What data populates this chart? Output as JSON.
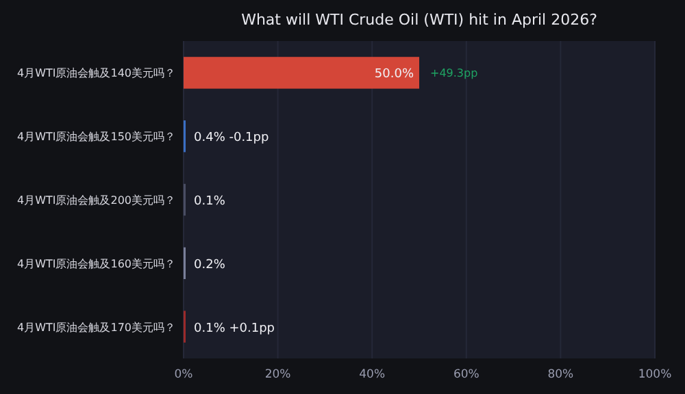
{
  "chart_data": {
    "type": "bar",
    "orientation": "horizontal",
    "title": "What will WTI Crude Oil (WTI) hit in April 2026?",
    "categories": [
      "4月WTI原油会触及140美元吗？",
      "4月WTI原油会触及150美元吗？",
      "4月WTI原油会触及200美元吗？",
      "4月WTI原油会触及160美元吗？",
      "4月WTI原油会触及170美元吗？"
    ],
    "values": [
      50.0,
      0.4,
      0.1,
      0.2,
      0.1
    ],
    "colors": [
      "#d44638",
      "#3a6fc4",
      "#4a4e63",
      "#7a7f99",
      "#9c2a2a"
    ],
    "value_labels": [
      "50.0%",
      "0.4% -0.1pp",
      "0.1%",
      "0.2%",
      "0.1% +0.1pp"
    ],
    "annotations": [
      {
        "text": "+49.3pp",
        "x": 50.0,
        "y": "4月WTI原油会触及140美元吗？"
      }
    ],
    "xlim": [
      0,
      100
    ],
    "xticks": [
      {
        "value": 0,
        "label": "0%"
      },
      {
        "value": 20,
        "label": "20%"
      },
      {
        "value": 40,
        "label": "40%"
      },
      {
        "value": 60,
        "label": "60%"
      },
      {
        "value": 80,
        "label": "80%"
      },
      {
        "value": 100,
        "label": "100%"
      }
    ],
    "grid": "x"
  }
}
